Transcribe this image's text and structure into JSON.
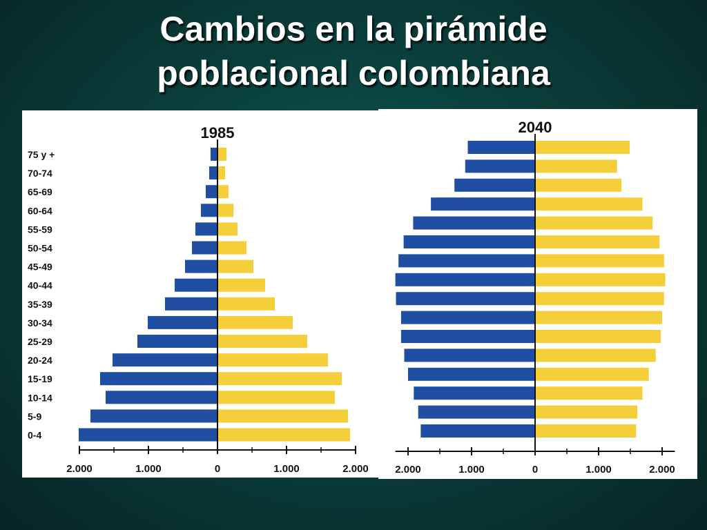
{
  "title": {
    "line1": "Cambios en la pirámide",
    "line2": "poblacional colombiana"
  },
  "colors": {
    "male": "#1f4ea3",
    "female": "#f5cf3a",
    "axis": "#111111"
  },
  "chart_data": [
    {
      "type": "bar",
      "orientation": "horizontal-pyramid",
      "title": "1985",
      "categories": [
        "75 y +",
        "70-74",
        "65-69",
        "60-64",
        "55-59",
        "50-54",
        "45-49",
        "40-44",
        "35-39",
        "30-34",
        "25-29",
        "20-24",
        "15-19",
        "10-14",
        "5-9",
        "0-4"
      ],
      "series": [
        {
          "values": [
            100,
            120,
            170,
            240,
            320,
            370,
            470,
            620,
            760,
            1010,
            1160,
            1520,
            1700,
            1620,
            1840,
            2010
          ]
        },
        {
          "values": [
            130,
            110,
            160,
            230,
            290,
            420,
            520,
            690,
            830,
            1090,
            1300,
            1600,
            1800,
            1700,
            1890,
            1920
          ]
        }
      ],
      "xticks": [
        "2.000",
        "1.000",
        "0",
        "1.000",
        "2.000"
      ],
      "xlim": [
        -2000,
        2000
      ]
    },
    {
      "type": "bar",
      "orientation": "horizontal-pyramid",
      "title": "2040",
      "categories": [
        "75 y +",
        "70-74",
        "65-69",
        "60-64",
        "55-59",
        "50-54",
        "45-49",
        "40-44",
        "35-39",
        "30-34",
        "25-29",
        "20-24",
        "15-19",
        "10-14",
        "5-9",
        "0-4"
      ],
      "series": [
        {
          "values": [
            1060,
            1100,
            1270,
            1640,
            1920,
            2070,
            2150,
            2200,
            2190,
            2110,
            2110,
            2060,
            2000,
            1910,
            1840,
            1800
          ]
        },
        {
          "values": [
            1490,
            1290,
            1360,
            1690,
            1850,
            1960,
            2030,
            2050,
            2030,
            2000,
            1980,
            1900,
            1790,
            1690,
            1610,
            1590
          ]
        }
      ],
      "xticks": [
        "2.000",
        "1.000",
        "0",
        "1.000",
        "2.000"
      ],
      "xlim": [
        -2200,
        2200
      ]
    }
  ]
}
